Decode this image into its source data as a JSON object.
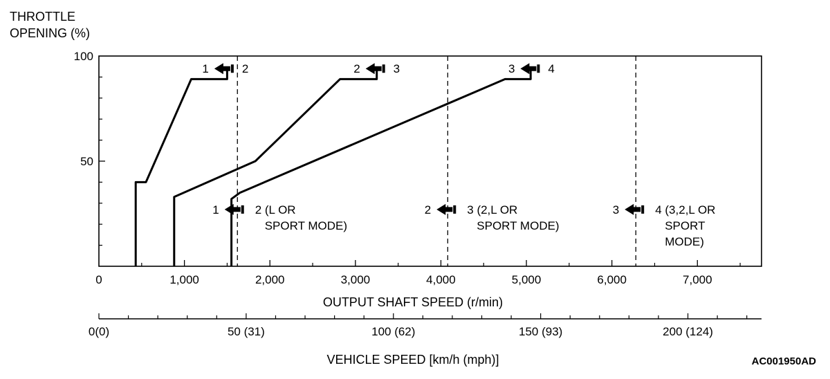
{
  "chart_data": {
    "type": "line",
    "ylabel_lines": [
      "THROTTLE",
      "OPENING (%)"
    ],
    "xlabel": "OUTPUT SHAFT SPEED (r/min)",
    "xlim": [
      0,
      7750
    ],
    "ylim": [
      0,
      100
    ],
    "x_ticks": [
      0,
      1000,
      2000,
      3000,
      4000,
      5000,
      6000,
      7000
    ],
    "x_tick_labels": [
      "0",
      "1,000",
      "2,000",
      "3,000",
      "4,000",
      "5,000",
      "6,000",
      "7,000"
    ],
    "y_ticks": [
      0,
      50,
      100
    ],
    "y_tick_labels": [
      "",
      "50",
      "100"
    ],
    "series": [
      {
        "points": [
          [
            430,
            0
          ],
          [
            430,
            40
          ],
          [
            550,
            40
          ],
          [
            1080,
            89
          ],
          [
            1500,
            89
          ],
          [
            1500,
            93
          ]
        ]
      },
      {
        "points": [
          [
            880,
            0
          ],
          [
            880,
            33
          ],
          [
            1830,
            50
          ],
          [
            2820,
            89
          ],
          [
            3250,
            89
          ],
          [
            3250,
            93
          ]
        ]
      },
      {
        "points": [
          [
            1550,
            0
          ],
          [
            1550,
            32
          ],
          [
            1650,
            35
          ],
          [
            4750,
            89
          ],
          [
            5050,
            89
          ],
          [
            5050,
            93
          ]
        ]
      }
    ],
    "kickdown_lines_x": [
      1620,
      4080,
      6280
    ],
    "upshift_markers": [
      {
        "x": 1350,
        "y": 94,
        "from": "1",
        "to": "2"
      },
      {
        "x": 3120,
        "y": 94,
        "from": "2",
        "to": "3"
      },
      {
        "x": 4930,
        "y": 94,
        "from": "3",
        "to": "4"
      }
    ],
    "kickdown_markers": [
      {
        "x": 1470,
        "y": 27,
        "from": "1",
        "to_lines": [
          "2 (L OR",
          "SPORT MODE)"
        ]
      },
      {
        "x": 3950,
        "y": 27,
        "from": "2",
        "to_lines": [
          "3 (2,L OR",
          "SPORT MODE)"
        ]
      },
      {
        "x": 6150,
        "y": 27,
        "from": "3",
        "to_lines": [
          "4 (3,2,L OR",
          "SPORT",
          "MODE)"
        ]
      }
    ],
    "secondary_axis": {
      "label": "VEHICLE SPEED [km/h (mph)]",
      "major_ticks_kmh": [
        0,
        50,
        100,
        150,
        200
      ],
      "tick_labels": [
        "0(0)",
        "50 (31)",
        "100 (62)",
        "150 (93)",
        "200 (124)"
      ],
      "minor_step_kmh": 10,
      "range_kmh": [
        0,
        225
      ]
    },
    "figure_code": "AC001950AD"
  }
}
